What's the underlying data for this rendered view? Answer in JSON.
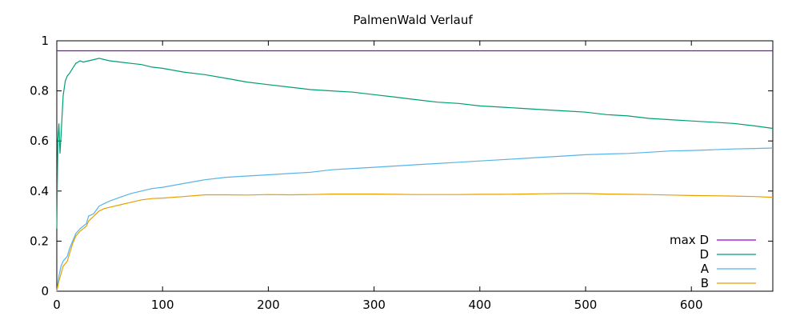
{
  "chart_data": {
    "type": "line",
    "title": "PalmenWald Verlauf",
    "xlabel": "",
    "ylabel": "",
    "xlim": [
      0,
      677
    ],
    "ylim": [
      0,
      1
    ],
    "x_ticks": [
      0,
      100,
      200,
      300,
      400,
      500,
      600
    ],
    "y_ticks": [
      0,
      0.2,
      0.4,
      0.6,
      0.8,
      1
    ],
    "y_tick_labels": [
      "0",
      "0.2",
      "0.4",
      "0.6",
      "0.8",
      "1"
    ],
    "x_tick_labels": [
      "0",
      "100",
      "200",
      "300",
      "400",
      "500",
      "600"
    ],
    "grid": false,
    "legend_position": "bottom-right",
    "series": [
      {
        "name": "max D",
        "color": "#9400d3",
        "x": [
          0,
          677
        ],
        "y": [
          0.96,
          0.96
        ]
      },
      {
        "name": "D",
        "color": "#009e73",
        "x": [
          0,
          1,
          2,
          3,
          4,
          5,
          6,
          8,
          10,
          12,
          15,
          18,
          22,
          25,
          30,
          35,
          40,
          45,
          50,
          60,
          70,
          80,
          90,
          100,
          120,
          140,
          160,
          180,
          200,
          220,
          240,
          260,
          280,
          300,
          320,
          340,
          360,
          380,
          400,
          420,
          440,
          460,
          480,
          500,
          520,
          540,
          560,
          580,
          600,
          620,
          640,
          660,
          677
        ],
        "y": [
          0.25,
          0.6,
          0.67,
          0.55,
          0.62,
          0.7,
          0.78,
          0.84,
          0.86,
          0.87,
          0.89,
          0.91,
          0.92,
          0.915,
          0.92,
          0.925,
          0.93,
          0.925,
          0.92,
          0.915,
          0.91,
          0.905,
          0.895,
          0.89,
          0.875,
          0.865,
          0.85,
          0.835,
          0.825,
          0.815,
          0.805,
          0.8,
          0.795,
          0.785,
          0.775,
          0.765,
          0.755,
          0.75,
          0.74,
          0.735,
          0.73,
          0.725,
          0.72,
          0.715,
          0.705,
          0.7,
          0.69,
          0.685,
          0.68,
          0.675,
          0.67,
          0.66,
          0.65
        ]
      },
      {
        "name": "A",
        "color": "#56b4e9",
        "x": [
          0,
          2,
          4,
          6,
          8,
          10,
          12,
          15,
          18,
          22,
          25,
          28,
          30,
          35,
          40,
          45,
          50,
          60,
          70,
          80,
          90,
          100,
          120,
          140,
          160,
          180,
          200,
          220,
          240,
          260,
          280,
          300,
          320,
          340,
          360,
          380,
          400,
          420,
          440,
          460,
          480,
          500,
          520,
          540,
          560,
          580,
          600,
          620,
          640,
          660,
          677
        ],
        "y": [
          0.0,
          0.06,
          0.1,
          0.12,
          0.13,
          0.14,
          0.17,
          0.2,
          0.23,
          0.25,
          0.26,
          0.27,
          0.3,
          0.31,
          0.34,
          0.35,
          0.36,
          0.375,
          0.39,
          0.4,
          0.41,
          0.415,
          0.43,
          0.445,
          0.455,
          0.46,
          0.465,
          0.47,
          0.475,
          0.485,
          0.49,
          0.495,
          0.5,
          0.505,
          0.51,
          0.515,
          0.52,
          0.525,
          0.53,
          0.535,
          0.54,
          0.545,
          0.548,
          0.55,
          0.555,
          0.56,
          0.562,
          0.565,
          0.568,
          0.57,
          0.572
        ]
      },
      {
        "name": "B",
        "color": "#e69f00",
        "x": [
          0,
          2,
          4,
          6,
          8,
          10,
          12,
          15,
          18,
          22,
          25,
          28,
          30,
          35,
          40,
          45,
          50,
          60,
          70,
          80,
          90,
          100,
          120,
          140,
          160,
          180,
          200,
          220,
          240,
          260,
          280,
          300,
          320,
          340,
          360,
          380,
          400,
          420,
          440,
          460,
          480,
          500,
          520,
          540,
          560,
          580,
          600,
          620,
          640,
          660,
          677
        ],
        "y": [
          0.0,
          0.04,
          0.07,
          0.1,
          0.11,
          0.12,
          0.15,
          0.19,
          0.22,
          0.24,
          0.25,
          0.26,
          0.28,
          0.3,
          0.32,
          0.33,
          0.335,
          0.345,
          0.355,
          0.365,
          0.37,
          0.372,
          0.378,
          0.385,
          0.385,
          0.384,
          0.386,
          0.385,
          0.386,
          0.388,
          0.388,
          0.388,
          0.387,
          0.386,
          0.386,
          0.386,
          0.387,
          0.387,
          0.388,
          0.389,
          0.39,
          0.39,
          0.388,
          0.387,
          0.386,
          0.384,
          0.382,
          0.381,
          0.38,
          0.378,
          0.375
        ]
      }
    ]
  }
}
